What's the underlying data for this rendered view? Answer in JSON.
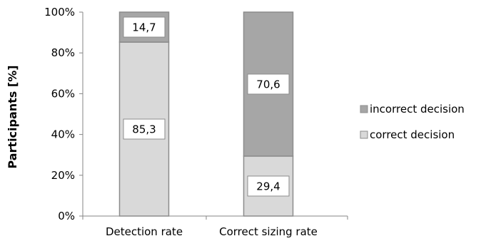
{
  "chart_data": {
    "type": "bar",
    "stacked": true,
    "categories": [
      "Detection rate",
      "Correct sizing rate"
    ],
    "series": [
      {
        "name": "correct decision",
        "values": [
          85.3,
          29.4
        ],
        "labels": [
          "85,3",
          "29,4"
        ],
        "color": "#d9d9d9"
      },
      {
        "name": "incorrect decision",
        "values": [
          14.7,
          70.6
        ],
        "labels": [
          "14,7",
          "70,6"
        ],
        "color": "#a6a6a6"
      }
    ],
    "ylabel": "Participants [%]",
    "xlabel": "",
    "ylim": [
      0,
      100
    ],
    "yticks": [
      "0%",
      "20%",
      "40%",
      "60%",
      "80%",
      "100%"
    ],
    "grid": false,
    "legend_position": "right"
  }
}
